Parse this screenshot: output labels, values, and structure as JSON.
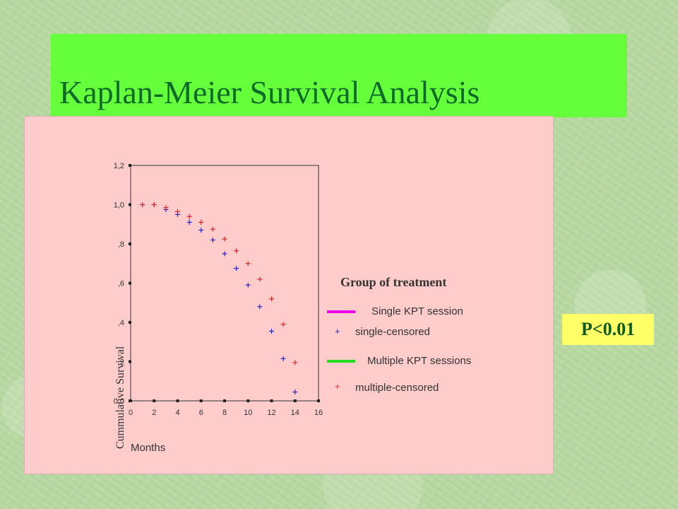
{
  "slide": {
    "title": "Kaplan-Meier Survival Analysis",
    "p_value": "P<0.01"
  },
  "colors": {
    "title_bg": "#66ff3c",
    "title_text": "#0d6a28",
    "panel_bg": "#ffcccc",
    "pvalue_bg": "#ffff66",
    "single_line": "#ee00ee",
    "multiple_line": "#22dd22",
    "single_censored": "#2222cc",
    "multiple_censored": "#dd2222"
  },
  "chart_data": {
    "type": "scatter",
    "title": "",
    "xlabel": "Months",
    "ylabel": "Cummulative  Survival",
    "xlim": [
      0,
      16
    ],
    "ylim": [
      0,
      1.2
    ],
    "x_ticks": [
      "0",
      "2",
      "4",
      "6",
      "8",
      "10",
      "12",
      "14",
      "16"
    ],
    "y_ticks": [
      "0,0",
      ",2",
      ",4",
      ",6",
      ",8",
      "1,0",
      "1,2"
    ],
    "legend_title": "Group of treatment",
    "legend": [
      {
        "label": "Single KPT session",
        "kind": "line",
        "color": "#ee00ee"
      },
      {
        "label": "single-censored",
        "kind": "plus",
        "color": "#2222cc"
      },
      {
        "label": "Multiple KPT sessions",
        "kind": "line",
        "color": "#22dd22"
      },
      {
        "label": "multiple-censored",
        "kind": "plus",
        "color": "#dd2222"
      }
    ],
    "series": [
      {
        "name": "single-censored",
        "color": "#2222cc",
        "x": [
          1,
          2,
          3,
          4,
          5,
          6,
          7,
          8,
          9,
          10,
          11,
          12,
          13,
          14
        ],
        "y": [
          1.0,
          1.0,
          0.975,
          0.95,
          0.91,
          0.87,
          0.82,
          0.75,
          0.675,
          0.59,
          0.48,
          0.355,
          0.215,
          0.045
        ]
      },
      {
        "name": "multiple-censored",
        "color": "#dd2222",
        "x": [
          1,
          2,
          3,
          4,
          5,
          6,
          7,
          8,
          9,
          10,
          11,
          12,
          13,
          14
        ],
        "y": [
          1.0,
          1.0,
          0.985,
          0.965,
          0.94,
          0.91,
          0.875,
          0.825,
          0.765,
          0.7,
          0.62,
          0.52,
          0.39,
          0.195
        ]
      }
    ]
  }
}
